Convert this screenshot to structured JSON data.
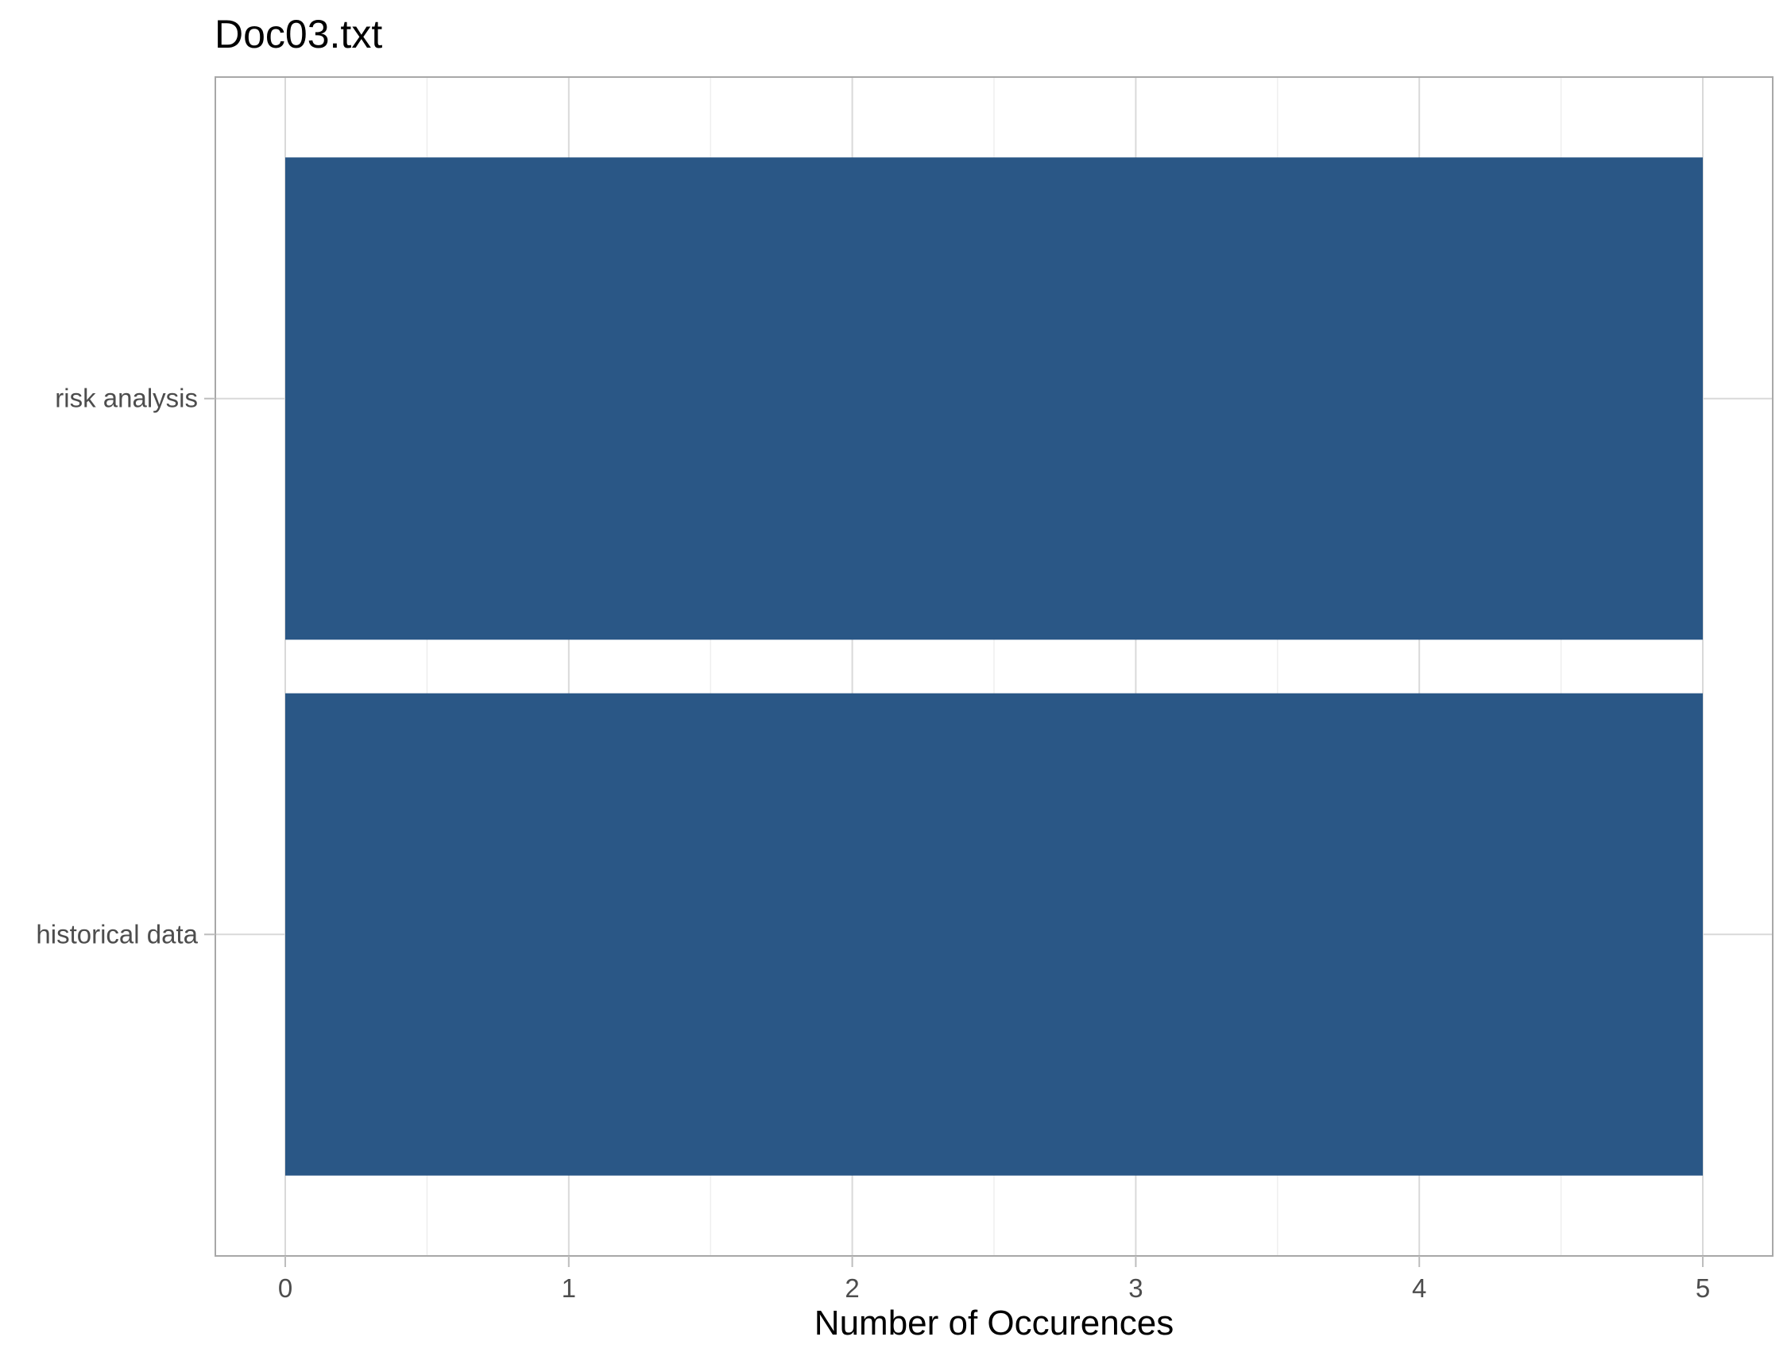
{
  "chart_data": {
    "type": "bar",
    "orientation": "horizontal",
    "title": "Doc03.txt",
    "xlabel": "Number of Occurences",
    "ylabel": "",
    "categories": [
      "risk analysis",
      "historical data"
    ],
    "values": [
      5,
      5
    ],
    "xlim": [
      0,
      5
    ],
    "x_ticks": [
      "0",
      "1",
      "2",
      "3",
      "4",
      "5"
    ],
    "grid": true,
    "legend": "none",
    "bar_color": "#2a5786"
  }
}
